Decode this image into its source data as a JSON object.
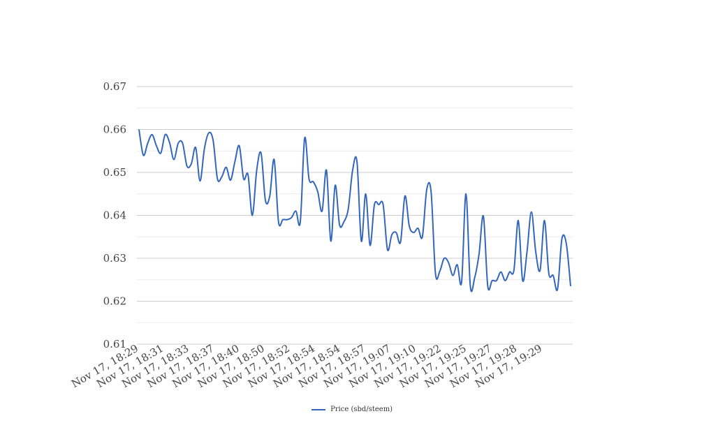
{
  "chart_data": {
    "type": "line",
    "title": "",
    "xlabel": "",
    "ylabel": "",
    "ylim": [
      0.61,
      0.67
    ],
    "yticks": [
      "0.61",
      "0.62",
      "0.63",
      "0.64",
      "0.65",
      "0.66",
      "0.67"
    ],
    "ytick_values": [
      0.61,
      0.62,
      0.63,
      0.64,
      0.65,
      0.66,
      0.67
    ],
    "minor_gridlines": true,
    "legend_position": "bottom-center",
    "x_tick_labels": [
      "Nov 17, 18:29",
      "Nov 17, 18:31",
      "Nov 17, 18:33",
      "Nov 17, 18:37",
      "Nov 17, 18:40",
      "Nov 17, 18:50",
      "Nov 17, 18:52",
      "Nov 17, 18:54",
      "Nov 17, 18:54",
      "Nov 17, 18:57",
      "Nov 17, 19:07",
      "Nov 17, 19:10",
      "Nov 17, 19:22",
      "Nov 17, 19:25",
      "Nov 17, 19:27",
      "Nov 17, 19:28",
      "Nov 17, 19:29"
    ],
    "series": [
      {
        "name": "Price (sbd/steem)",
        "color": "#3366bb",
        "values": [
          0.66,
          0.654,
          0.6568,
          0.6588,
          0.6562,
          0.6545,
          0.6588,
          0.657,
          0.653,
          0.6568,
          0.6568,
          0.6515,
          0.652,
          0.6558,
          0.648,
          0.6555,
          0.6592,
          0.6575,
          0.6485,
          0.649,
          0.6512,
          0.6482,
          0.6525,
          0.6562,
          0.6485,
          0.6495,
          0.64,
          0.6505,
          0.6545,
          0.6435,
          0.6445,
          0.653,
          0.6385,
          0.639,
          0.639,
          0.6395,
          0.641,
          0.6385,
          0.658,
          0.6485,
          0.6478,
          0.6455,
          0.641,
          0.6505,
          0.634,
          0.647,
          0.6378,
          0.6385,
          0.6415,
          0.6505,
          0.6525,
          0.634,
          0.645,
          0.633,
          0.6425,
          0.6425,
          0.6425,
          0.632,
          0.6355,
          0.636,
          0.6338,
          0.6445,
          0.6375,
          0.636,
          0.637,
          0.635,
          0.646,
          0.6455,
          0.6265,
          0.627,
          0.63,
          0.629,
          0.626,
          0.6285,
          0.6245,
          0.645,
          0.6235,
          0.6255,
          0.631,
          0.6398,
          0.6235,
          0.6248,
          0.6248,
          0.6268,
          0.6248,
          0.6268,
          0.6272,
          0.6388,
          0.6248,
          0.6315,
          0.6408,
          0.6315,
          0.6272,
          0.6388,
          0.6265,
          0.626,
          0.6228,
          0.6345,
          0.6335,
          0.6235
        ]
      }
    ]
  }
}
